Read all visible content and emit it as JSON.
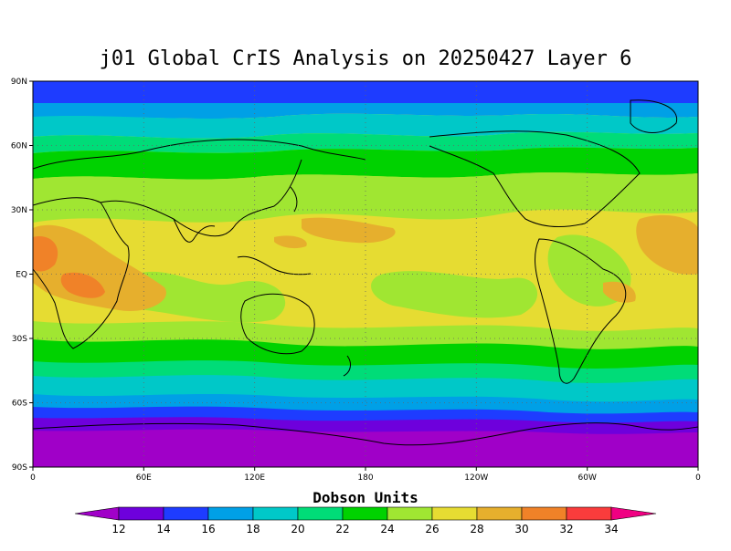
{
  "title": "j01 Global CrIS Analysis on 20250427 Layer 6",
  "map": {
    "lat_labels": [
      "90N",
      "60N",
      "30N",
      "EQ",
      "30S",
      "60S",
      "90S"
    ],
    "lon_labels": [
      "0",
      "60E",
      "120E",
      "180",
      "120W",
      "60W",
      "0"
    ],
    "grid": "dotted"
  },
  "colorbar": {
    "title": "Dobson Units",
    "levels": [
      "12",
      "14",
      "16",
      "18",
      "20",
      "22",
      "24",
      "26",
      "28",
      "30",
      "32",
      "34"
    ],
    "colors": [
      "#a000c8",
      "#6e00dc",
      "#1e3cff",
      "#00a0e6",
      "#00c8c8",
      "#00dc78",
      "#00d200",
      "#a0e632",
      "#e6dc32",
      "#e6af2d",
      "#f08228",
      "#fa3c3c",
      "#f00082"
    ]
  }
}
